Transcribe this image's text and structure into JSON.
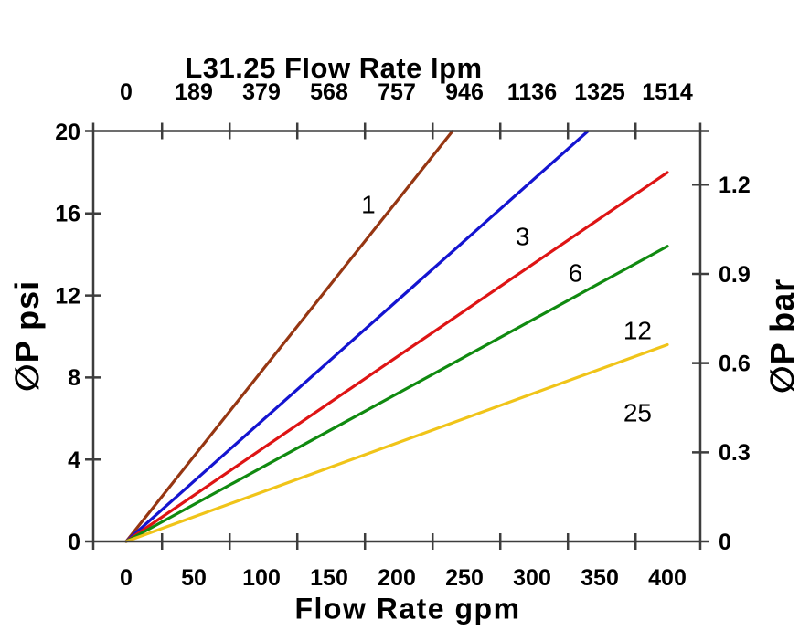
{
  "chart_data": {
    "type": "line",
    "title": "L31.25 Flow Rate lpm",
    "x_axis_top": {
      "units": "lpm",
      "tick_labels": [
        "0",
        "189",
        "379",
        "568",
        "757",
        "946",
        "1136",
        "1325",
        "1514"
      ]
    },
    "x_axis_bottom": {
      "label": "Flow Rate gpm",
      "units": "gpm",
      "tick_labels": [
        "0",
        "50",
        "100",
        "150",
        "200",
        "250",
        "300",
        "350",
        "400"
      ],
      "tick_values_gpm": [
        0,
        50,
        100,
        150,
        200,
        250,
        300,
        350,
        400
      ]
    },
    "y_axis_left": {
      "label": "∅P psi",
      "units": "psi",
      "tick_labels": [
        "0",
        "4",
        "8",
        "12",
        "16",
        "20"
      ],
      "tick_values_psi": [
        0,
        4,
        8,
        12,
        16,
        20
      ],
      "range_psi": [
        0,
        20
      ]
    },
    "y_axis_right": {
      "label": "∅P bar",
      "units": "bar",
      "tick_labels": [
        "0",
        "0.3",
        "0.6",
        "0.9",
        "1.2"
      ],
      "tick_values_bar": [
        0,
        0.3,
        0.6,
        0.9,
        1.2
      ]
    },
    "xlim_gpm": [
      -24.3,
      424.3
    ],
    "grid": false,
    "legend": "inline-labels",
    "x_tickmark_positions_gpm": [
      26.5,
      76.5,
      126.5,
      176.5,
      226.5,
      276.5,
      326.5,
      376.5
    ],
    "interior_left_tickmarks_psi": [
      4,
      8,
      12,
      16
    ],
    "interior_right_tickmarks_bar": [
      0.3,
      0.6,
      0.9,
      1.2
    ],
    "series": [
      {
        "name": "1",
        "color": "#963612",
        "points_gpm_psi": [
          [
            0,
            0
          ],
          [
            241,
            20
          ]
        ],
        "label_at_gpm_psi": [
          179,
          16.45
        ]
      },
      {
        "name": "3",
        "color": "#1414D0",
        "points_gpm_psi": [
          [
            0,
            0
          ],
          [
            341,
            20
          ]
        ],
        "label_at_gpm_psi": [
          293,
          14.9
        ]
      },
      {
        "name": "6",
        "color": "#DE1414",
        "points_gpm_psi": [
          [
            0,
            0
          ],
          [
            400,
            18.0
          ]
        ],
        "label_at_gpm_psi": [
          332,
          13.1
        ]
      },
      {
        "name": "12",
        "color": "#108A10",
        "points_gpm_psi": [
          [
            0,
            0
          ],
          [
            400,
            14.4
          ]
        ],
        "label_at_gpm_psi": [
          378,
          10.3
        ]
      },
      {
        "name": "25",
        "color": "#F0C419",
        "points_gpm_psi": [
          [
            0,
            0
          ],
          [
            400,
            9.6
          ]
        ],
        "label_at_gpm_psi": [
          378,
          6.3
        ]
      }
    ],
    "psi_per_bar": 14.5038,
    "axis_color": "#3d3d3d"
  }
}
